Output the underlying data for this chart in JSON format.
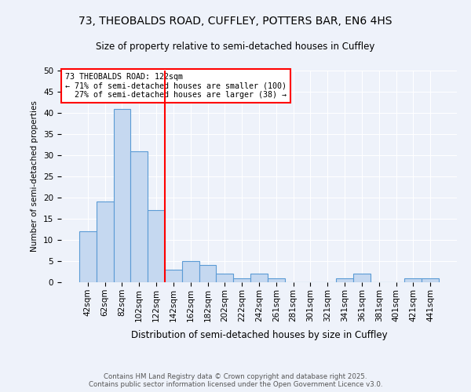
{
  "title1": "73, THEOBALDS ROAD, CUFFLEY, POTTERS BAR, EN6 4HS",
  "title2": "Size of property relative to semi-detached houses in Cuffley",
  "xlabel": "Distribution of semi-detached houses by size in Cuffley",
  "ylabel": "Number of semi-detached properties",
  "bin_labels": [
    "42sqm",
    "62sqm",
    "82sqm",
    "102sqm",
    "122sqm",
    "142sqm",
    "162sqm",
    "182sqm",
    "202sqm",
    "222sqm",
    "242sqm",
    "261sqm",
    "281sqm",
    "301sqm",
    "321sqm",
    "341sqm",
    "361sqm",
    "381sqm",
    "401sqm",
    "421sqm",
    "441sqm"
  ],
  "bin_values": [
    12,
    19,
    41,
    31,
    17,
    3,
    5,
    4,
    2,
    1,
    2,
    1,
    0,
    0,
    0,
    1,
    2,
    0,
    0,
    1,
    1
  ],
  "bar_color": "#c5d8f0",
  "bar_edge_color": "#5b9bd5",
  "vline_color": "red",
  "annotation_text": "73 THEOBALDS ROAD: 122sqm\n← 71% of semi-detached houses are smaller (100)\n  27% of semi-detached houses are larger (38) →",
  "annotation_box_color": "white",
  "annotation_box_edge": "red",
  "ylim": [
    0,
    50
  ],
  "yticks": [
    0,
    5,
    10,
    15,
    20,
    25,
    30,
    35,
    40,
    45,
    50
  ],
  "footer1": "Contains HM Land Registry data © Crown copyright and database right 2025.",
  "footer2": "Contains public sector information licensed under the Open Government Licence v3.0.",
  "bg_color": "#eef2fa"
}
